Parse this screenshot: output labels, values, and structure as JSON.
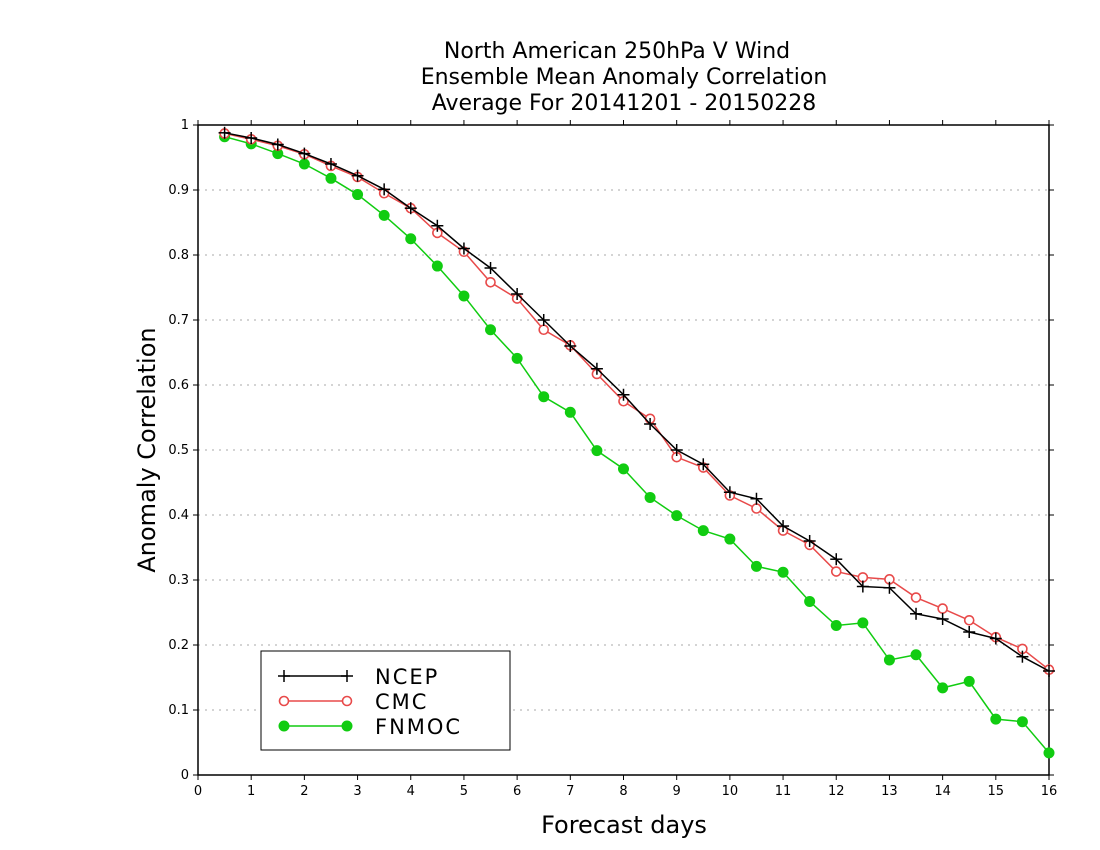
{
  "chart_data": {
    "type": "line",
    "title_lines": [
      "North American 250hPa V Wind",
      "Ensemble Mean Anomaly Correlation",
      "Average For 20141201 - 20150228"
    ],
    "xlabel": "Forecast days",
    "ylabel": "Anomaly Correlation",
    "xlim": [
      0,
      16
    ],
    "ylim": [
      0,
      1
    ],
    "x_ticks": [
      "0",
      "1",
      "2",
      "3",
      "4",
      "5",
      "6",
      "7",
      "8",
      "9",
      "10",
      "11",
      "12",
      "13",
      "14",
      "15",
      "16"
    ],
    "y_ticks": [
      "0",
      "0.1",
      "0.2",
      "0.3",
      "0.4",
      "0.5",
      "0.6",
      "0.7",
      "0.8",
      "0.9",
      "1"
    ],
    "grid": "horizontal dotted",
    "legend_position": "bottom-left",
    "x": [
      0.5,
      1,
      1.5,
      2,
      2.5,
      3,
      3.5,
      4,
      4.5,
      5,
      5.5,
      6,
      6.5,
      7,
      7.5,
      8,
      8.5,
      9,
      9.5,
      10,
      10.5,
      11,
      11.5,
      12,
      12.5,
      13,
      13.5,
      14,
      14.5,
      15,
      15.5,
      16
    ],
    "series": [
      {
        "name": "NCEP",
        "color": "#000000",
        "marker": "plus",
        "values": [
          0.988,
          0.98,
          0.97,
          0.956,
          0.94,
          0.922,
          0.901,
          0.872,
          0.845,
          0.81,
          0.78,
          0.74,
          0.7,
          0.66,
          0.625,
          0.585,
          0.54,
          0.5,
          0.478,
          0.435,
          0.425,
          0.383,
          0.36,
          0.332,
          0.29,
          0.288,
          0.248,
          0.24,
          0.22,
          0.21,
          0.182,
          0.16
        ]
      },
      {
        "name": "CMC",
        "color": "#e84a4a",
        "marker": "open-circle",
        "values": [
          0.987,
          0.978,
          0.968,
          0.955,
          0.937,
          0.92,
          0.895,
          0.872,
          0.834,
          0.805,
          0.758,
          0.733,
          0.685,
          0.661,
          0.617,
          0.575,
          0.548,
          0.489,
          0.473,
          0.43,
          0.41,
          0.376,
          0.354,
          0.313,
          0.304,
          0.301,
          0.273,
          0.256,
          0.238,
          0.212,
          0.194,
          0.162
        ]
      },
      {
        "name": "FNMOC",
        "color": "#11cc11",
        "marker": "filled-circle",
        "values": [
          0.982,
          0.971,
          0.956,
          0.94,
          0.918,
          0.893,
          0.861,
          0.825,
          0.783,
          0.737,
          0.685,
          0.641,
          0.582,
          0.558,
          0.499,
          0.471,
          0.427,
          0.399,
          0.376,
          0.363,
          0.321,
          0.312,
          0.267,
          0.23,
          0.234,
          0.177,
          0.185,
          0.134,
          0.144,
          0.086,
          0.082,
          0.034
        ]
      }
    ]
  }
}
